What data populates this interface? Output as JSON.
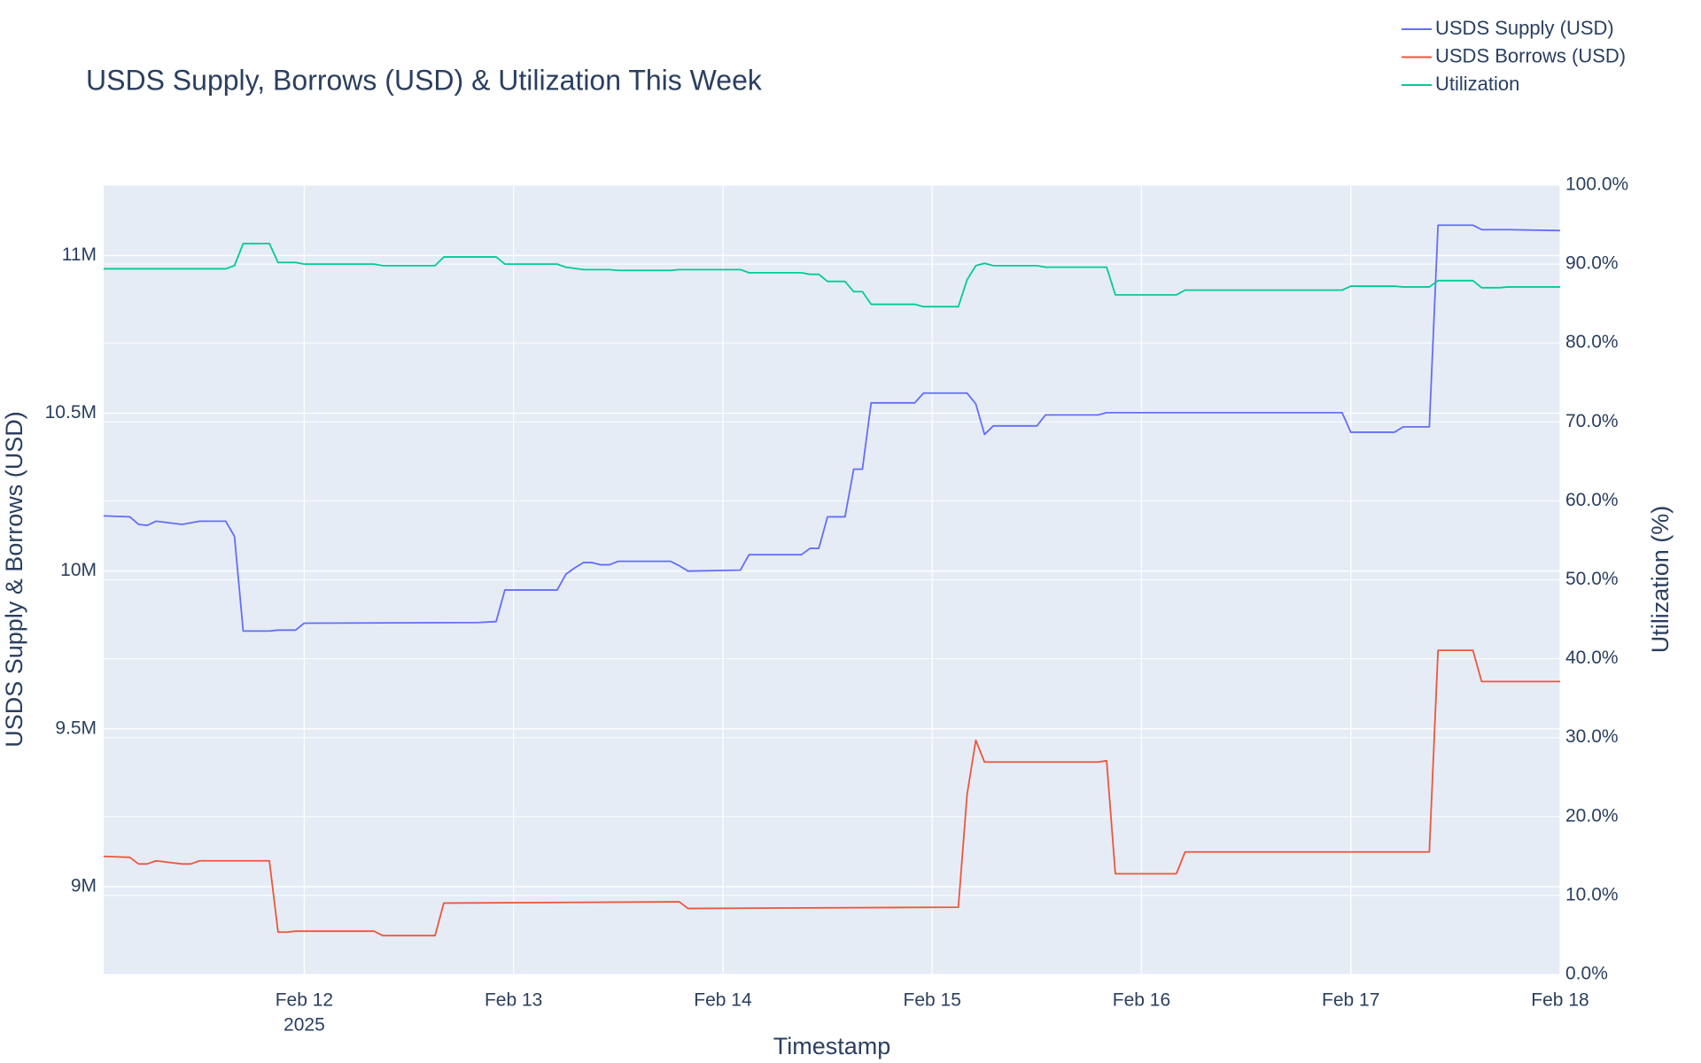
{
  "chart_data": {
    "type": "line",
    "title": "USDS Supply, Borrows (USD) & Utilization This Week",
    "x_label": "Timestamp",
    "y_label": "USDS Supply & Borrows (USD)",
    "y2_label": "Utilization (%)",
    "x_year_label": "2025",
    "xlim": [
      "2025-02-11T01:00",
      "2025-02-18T00:00"
    ],
    "xticks": [
      {
        "value": "2025-02-12T00:00",
        "label": "Feb 12"
      },
      {
        "value": "2025-02-13T00:00",
        "label": "Feb 13"
      },
      {
        "value": "2025-02-14T00:00",
        "label": "Feb 14"
      },
      {
        "value": "2025-02-15T00:00",
        "label": "Feb 15"
      },
      {
        "value": "2025-02-16T00:00",
        "label": "Feb 16"
      },
      {
        "value": "2025-02-17T00:00",
        "label": "Feb 17"
      },
      {
        "value": "2025-02-18T00:00",
        "label": "Feb 18"
      }
    ],
    "ylim": [
      8722000,
      11223000
    ],
    "yticks": [
      {
        "value": 9000000,
        "label": "9M"
      },
      {
        "value": 9500000,
        "label": "9.5M"
      },
      {
        "value": 10000000,
        "label": "10M"
      },
      {
        "value": 10500000,
        "label": "10.5M"
      },
      {
        "value": 11000000,
        "label": "11M"
      }
    ],
    "y2lim": [
      0,
      100
    ],
    "y2ticks": [
      {
        "value": 0,
        "label": "0.0%"
      },
      {
        "value": 10,
        "label": "10.0%"
      },
      {
        "value": 20,
        "label": "20.0%"
      },
      {
        "value": 30,
        "label": "30.0%"
      },
      {
        "value": 40,
        "label": "40.0%"
      },
      {
        "value": 50,
        "label": "50.0%"
      },
      {
        "value": 60,
        "label": "60.0%"
      },
      {
        "value": 70,
        "label": "70.0%"
      },
      {
        "value": 80,
        "label": "80.0%"
      },
      {
        "value": 90,
        "label": "90.0%"
      },
      {
        "value": 100,
        "label": "100.0%"
      }
    ],
    "grid": true,
    "legend": "top-right",
    "series": [
      {
        "name": "USDS Supply (USD)",
        "color": "#636efa",
        "x": [
          "2025-02-11T01:00",
          "2025-02-11T04:00",
          "2025-02-11T05:00",
          "2025-02-11T06:00",
          "2025-02-11T07:00",
          "2025-02-11T10:00",
          "2025-02-11T12:00",
          "2025-02-11T15:00",
          "2025-02-11T16:00",
          "2025-02-11T17:00",
          "2025-02-11T20:00",
          "2025-02-11T21:00",
          "2025-02-11T23:00",
          "2025-02-12T00:00",
          "2025-02-12T20:00",
          "2025-02-12T22:00",
          "2025-02-12T23:00",
          "2025-02-13T05:00",
          "2025-02-13T06:00",
          "2025-02-13T07:00",
          "2025-02-13T08:00",
          "2025-02-13T09:00",
          "2025-02-13T10:00",
          "2025-02-13T11:00",
          "2025-02-13T12:00",
          "2025-02-13T18:00",
          "2025-02-13T19:00",
          "2025-02-13T20:00",
          "2025-02-14T02:00",
          "2025-02-14T03:00",
          "2025-02-14T09:00",
          "2025-02-14T10:00",
          "2025-02-14T11:00",
          "2025-02-14T12:00",
          "2025-02-14T14:00",
          "2025-02-14T15:00",
          "2025-02-14T16:00",
          "2025-02-14T17:00",
          "2025-02-14T22:00",
          "2025-02-14T23:00",
          "2025-02-15T04:00",
          "2025-02-15T05:00",
          "2025-02-15T06:00",
          "2025-02-15T07:00",
          "2025-02-15T12:00",
          "2025-02-15T13:00",
          "2025-02-15T19:00",
          "2025-02-15T20:00",
          "2025-02-16T23:00",
          "2025-02-17T00:00",
          "2025-02-17T05:00",
          "2025-02-17T06:00",
          "2025-02-17T09:00",
          "2025-02-17T10:00",
          "2025-02-17T14:00",
          "2025-02-17T15:00",
          "2025-02-17T18:00",
          "2025-02-18T00:00"
        ],
        "values": [
          10175000,
          10172000,
          10148000,
          10145000,
          10158000,
          10148000,
          10158000,
          10158000,
          10110000,
          9810000,
          9810000,
          9813000,
          9813000,
          9835000,
          9837000,
          9840000,
          9940000,
          9940000,
          9990000,
          10010000,
          10027000,
          10027000,
          10020000,
          10020000,
          10031000,
          10031000,
          10017000,
          10000000,
          10003000,
          10052000,
          10052000,
          10072000,
          10072000,
          10172000,
          10172000,
          10323000,
          10323000,
          10533000,
          10533000,
          10564000,
          10564000,
          10530000,
          10433000,
          10460000,
          10460000,
          10495000,
          10495000,
          10502000,
          10502000,
          10440000,
          10440000,
          10457000,
          10457000,
          11096000,
          11096000,
          11082000,
          11082000,
          11079000
        ]
      },
      {
        "name": "USDS Borrows (USD)",
        "color": "#ef553b",
        "x": [
          "2025-02-11T01:00",
          "2025-02-11T04:00",
          "2025-02-11T05:00",
          "2025-02-11T06:00",
          "2025-02-11T07:00",
          "2025-02-11T10:00",
          "2025-02-11T11:00",
          "2025-02-11T12:00",
          "2025-02-11T20:00",
          "2025-02-11T21:00",
          "2025-02-11T22:00",
          "2025-02-11T23:00",
          "2025-02-12T08:00",
          "2025-02-12T09:00",
          "2025-02-12T15:00",
          "2025-02-12T16:00",
          "2025-02-13T19:00",
          "2025-02-13T20:00",
          "2025-02-15T03:00",
          "2025-02-15T04:00",
          "2025-02-15T05:00",
          "2025-02-15T06:00",
          "2025-02-15T19:00",
          "2025-02-15T20:00",
          "2025-02-15T21:00",
          "2025-02-16T04:00",
          "2025-02-16T05:00",
          "2025-02-17T09:00",
          "2025-02-17T10:00",
          "2025-02-17T14:00",
          "2025-02-17T15:00",
          "2025-02-18T00:00"
        ],
        "values": [
          9096000,
          9093000,
          9072000,
          9072000,
          9082000,
          9072000,
          9072000,
          9082000,
          9082000,
          8856000,
          8856000,
          8859000,
          8859000,
          8845000,
          8845000,
          8948000,
          8952000,
          8931000,
          8935000,
          9292000,
          9464000,
          9395000,
          9395000,
          9399000,
          9041000,
          9041000,
          9110000,
          9110000,
          9749000,
          9749000,
          9650000,
          9650000
        ]
      },
      {
        "name": "Utilization",
        "color": "#00cc96",
        "axis": "y2",
        "x": [
          "2025-02-11T01:00",
          "2025-02-11T15:00",
          "2025-02-11T16:00",
          "2025-02-11T17:00",
          "2025-02-11T20:00",
          "2025-02-11T21:00",
          "2025-02-11T23:00",
          "2025-02-12T00:00",
          "2025-02-12T08:00",
          "2025-02-12T09:00",
          "2025-02-12T15:00",
          "2025-02-12T16:00",
          "2025-02-12T22:00",
          "2025-02-12T23:00",
          "2025-02-13T05:00",
          "2025-02-13T06:00",
          "2025-02-13T08:00",
          "2025-02-13T11:00",
          "2025-02-13T12:00",
          "2025-02-13T18:00",
          "2025-02-13T19:00",
          "2025-02-14T02:00",
          "2025-02-14T03:00",
          "2025-02-14T09:00",
          "2025-02-14T10:00",
          "2025-02-14T11:00",
          "2025-02-14T12:00",
          "2025-02-14T14:00",
          "2025-02-14T15:00",
          "2025-02-14T16:00",
          "2025-02-14T17:00",
          "2025-02-14T22:00",
          "2025-02-14T23:00",
          "2025-02-15T03:00",
          "2025-02-15T04:00",
          "2025-02-15T05:00",
          "2025-02-15T06:00",
          "2025-02-15T07:00",
          "2025-02-15T12:00",
          "2025-02-15T13:00",
          "2025-02-15T20:00",
          "2025-02-15T21:00",
          "2025-02-16T04:00",
          "2025-02-16T05:00",
          "2025-02-16T23:00",
          "2025-02-17T00:00",
          "2025-02-17T05:00",
          "2025-02-17T06:00",
          "2025-02-17T09:00",
          "2025-02-17T10:00",
          "2025-02-17T14:00",
          "2025-02-17T15:00",
          "2025-02-17T17:00",
          "2025-02-17T18:00",
          "2025-02-18T00:00"
        ],
        "values": [
          89.4,
          89.4,
          89.8,
          92.6,
          92.6,
          90.2,
          90.2,
          90.0,
          90.0,
          89.8,
          89.8,
          90.9,
          90.9,
          90.0,
          90.0,
          89.6,
          89.3,
          89.3,
          89.2,
          89.2,
          89.3,
          89.3,
          88.9,
          88.9,
          88.7,
          88.7,
          87.8,
          87.8,
          86.5,
          86.5,
          84.9,
          84.9,
          84.6,
          84.6,
          88.0,
          89.8,
          90.1,
          89.8,
          89.8,
          89.6,
          89.6,
          86.1,
          86.1,
          86.7,
          86.7,
          87.2,
          87.2,
          87.1,
          87.1,
          87.9,
          87.9,
          87.0,
          87.0,
          87.1,
          87.1
        ]
      }
    ]
  }
}
